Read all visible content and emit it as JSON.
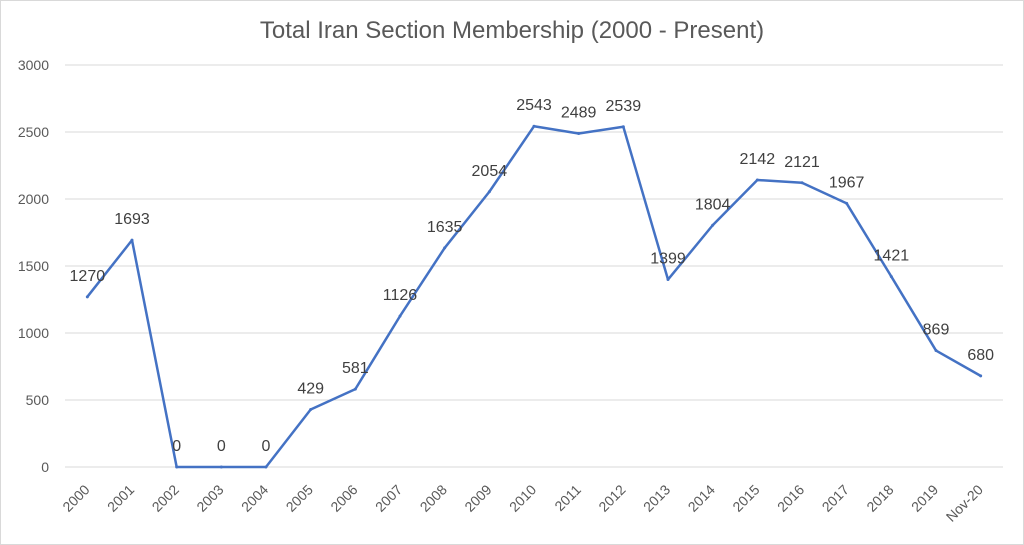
{
  "chart_data": {
    "type": "line",
    "title": "Total Iran Section Membership (2000 - Present)",
    "xlabel": "",
    "ylabel": "",
    "ylim": [
      0,
      3000
    ],
    "yticks": [
      0,
      500,
      1000,
      1500,
      2000,
      2500,
      3000
    ],
    "categories": [
      "2000",
      "2001",
      "2002",
      "2003",
      "2004",
      "2005",
      "2006",
      "2007",
      "2008",
      "2009",
      "2010",
      "2011",
      "2012",
      "2013",
      "2014",
      "2015",
      "2016",
      "2017",
      "2018",
      "2019",
      "Nov-20"
    ],
    "series": [
      {
        "values": [
          1270,
          1693,
          0,
          0,
          0,
          429,
          581,
          1126,
          1635,
          2054,
          2543,
          2489,
          2539,
          1399,
          1804,
          2142,
          2121,
          1967,
          1421,
          869,
          680
        ]
      }
    ],
    "grid": true,
    "legend": "none",
    "colors": {
      "series": "#4472c4",
      "grid": "#d9d9d9",
      "text": "#595959"
    }
  }
}
